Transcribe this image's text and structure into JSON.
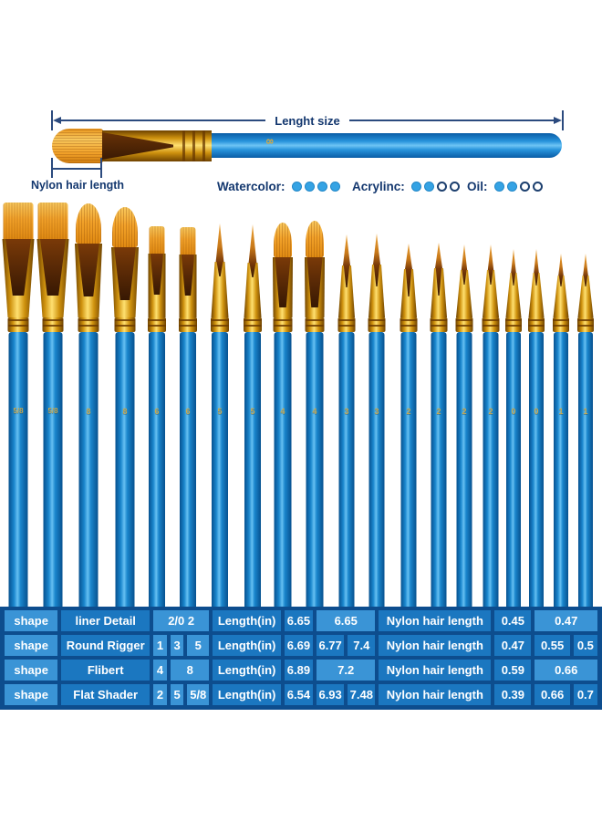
{
  "colors": {
    "table_bg": "#0d4d8e",
    "cell_base": "#1b77c0",
    "cell_light": "#3a94d6",
    "dot_fill": "#35a3e4",
    "navy_text": "#14386f",
    "handle_blue": "#1a86cd",
    "ferrule_gold": "#ffe070",
    "bristle_orange": "#f2a22a"
  },
  "diagram": {
    "length_label": "Lenght  size",
    "hair_label": "Nylon hair length",
    "handle_number": "8"
  },
  "ratings": [
    {
      "label": "Watercolor:",
      "filled": 4,
      "total": 4
    },
    {
      "label": "Acrylinc:",
      "filled": 2,
      "total": 4
    },
    {
      "label": "Oil:",
      "filled": 2,
      "total": 4
    }
  ],
  "brushes": [
    {
      "size": "5/8",
      "shape": "flat"
    },
    {
      "size": "5/8",
      "shape": "flat"
    },
    {
      "size": "8",
      "shape": "filbert"
    },
    {
      "size": "8",
      "shape": "filbert"
    },
    {
      "size": "6",
      "shape": "flat"
    },
    {
      "size": "6",
      "shape": "flat"
    },
    {
      "size": "5",
      "shape": "round"
    },
    {
      "size": "5",
      "shape": "round"
    },
    {
      "size": "4",
      "shape": "filbert"
    },
    {
      "size": "4",
      "shape": "filbert"
    },
    {
      "size": "3",
      "shape": "round"
    },
    {
      "size": "3",
      "shape": "round"
    },
    {
      "size": "2",
      "shape": "round"
    },
    {
      "size": "2",
      "shape": "round"
    },
    {
      "size": "2",
      "shape": "liner"
    },
    {
      "size": "2",
      "shape": "liner"
    },
    {
      "size": "0",
      "shape": "liner"
    },
    {
      "size": "0",
      "shape": "liner"
    },
    {
      "size": "1",
      "shape": "liner"
    },
    {
      "size": "1",
      "shape": "liner"
    }
  ],
  "table": {
    "rows": [
      {
        "cells": [
          {
            "text": "shape",
            "light": true
          },
          {
            "text": "liner Detail"
          },
          {
            "text": "2/0 2",
            "span": 3,
            "light": true
          },
          {
            "text": "Length(in)"
          },
          {
            "text": "6.65"
          },
          {
            "text": "6.65",
            "span": 2,
            "light": true
          },
          {
            "text": "Nylon hair length"
          },
          {
            "text": "0.45"
          },
          {
            "text": "0.47",
            "span": 2,
            "light": true
          }
        ]
      },
      {
        "cells": [
          {
            "text": "shape",
            "light": true
          },
          {
            "text": "Round Rigger"
          },
          {
            "text": "1",
            "light": true
          },
          {
            "text": "3",
            "light": true
          },
          {
            "text": "5",
            "light": true
          },
          {
            "text": "Length(in)"
          },
          {
            "text": "6.69"
          },
          {
            "text": "6.77"
          },
          {
            "text": "7.4"
          },
          {
            "text": "Nylon hair length"
          },
          {
            "text": "0.47"
          },
          {
            "text": "0.55"
          },
          {
            "text": "0.5"
          }
        ]
      },
      {
        "cells": [
          {
            "text": "shape",
            "light": true
          },
          {
            "text": "Flibert"
          },
          {
            "text": "4",
            "light": true
          },
          {
            "text": "8",
            "span": 2,
            "light": true
          },
          {
            "text": "Length(in)"
          },
          {
            "text": "6.89"
          },
          {
            "text": "7.2",
            "span": 2,
            "light": true
          },
          {
            "text": "Nylon hair length"
          },
          {
            "text": "0.59"
          },
          {
            "text": "0.66",
            "span": 2,
            "light": true
          }
        ]
      },
      {
        "cells": [
          {
            "text": "shape",
            "light": true
          },
          {
            "text": "Flat Shader"
          },
          {
            "text": "2",
            "light": true
          },
          {
            "text": "5",
            "light": true
          },
          {
            "text": "5/8",
            "light": true
          },
          {
            "text": "Length(in)"
          },
          {
            "text": "6.54"
          },
          {
            "text": "6.93"
          },
          {
            "text": "7.48"
          },
          {
            "text": "Nylon hair length"
          },
          {
            "text": "0.39"
          },
          {
            "text": "0.66"
          },
          {
            "text": "0.7"
          }
        ]
      }
    ]
  }
}
